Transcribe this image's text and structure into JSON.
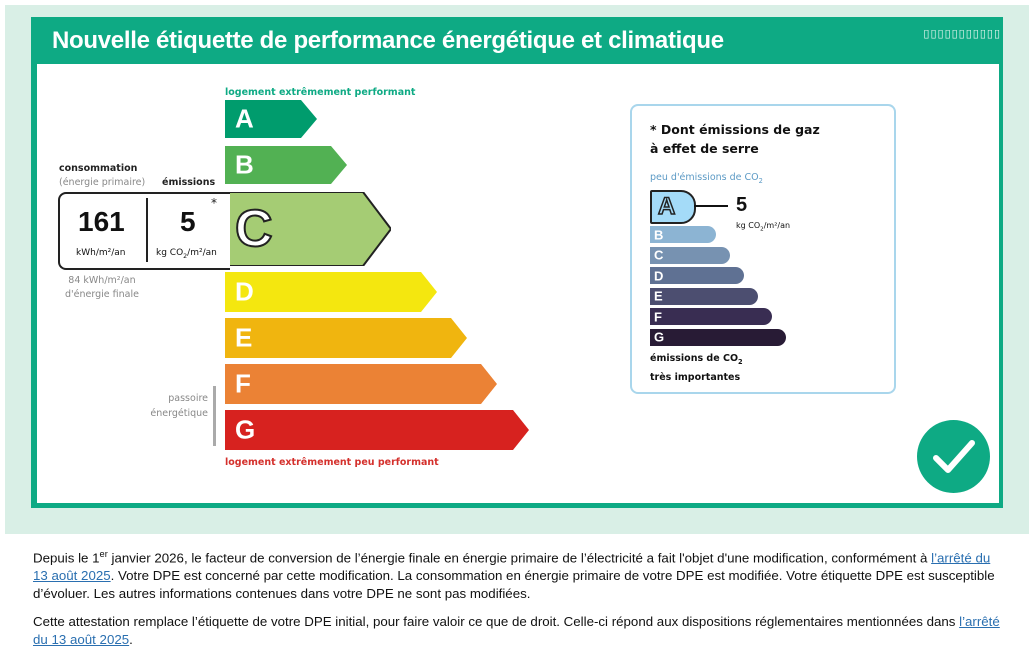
{
  "label": {
    "title": "Nouvelle étiquette de performance énergétique et climatique",
    "corner_text": "▯▯▯▯▯▯▯▯▯▯▯",
    "top_caption": "logement extrêmement performant",
    "bottom_caption": "logement extrêmement peu performant",
    "energy_classes": [
      {
        "letter": "A",
        "color": "#009c6d"
      },
      {
        "letter": "B",
        "color": "#52b153"
      },
      {
        "letter": "C",
        "color": "#a5cc74"
      },
      {
        "letter": "D",
        "color": "#f4e70f"
      },
      {
        "letter": "E",
        "color": "#f0b50f"
      },
      {
        "letter": "F",
        "color": "#eb8235"
      },
      {
        "letter": "G",
        "color": "#d7221f"
      }
    ],
    "current_class": "C",
    "consumption": {
      "label": "consommation",
      "sub_label": "(énergie primaire)",
      "value": "161",
      "unit": "kWh/m²/an"
    },
    "emissions": {
      "label": "émissions",
      "value": "5",
      "unit_pre": "kg CO",
      "unit_sub": "2",
      "unit_post": "/m²/an",
      "star": "*"
    },
    "final_energy": {
      "line1": "84 kWh/m²/an",
      "line2": "d'énergie finale"
    },
    "passoire": {
      "line1": "passoire",
      "line2": "énergétique"
    },
    "ges": {
      "title_line1": "* Dont émissions de gaz",
      "title_line2": "à effet de serre",
      "top_caption_pre": "peu d'émissions de CO",
      "top_caption_sub": "2",
      "classes": [
        {
          "letter": "A",
          "color": "#a4dbf8"
        },
        {
          "letter": "B",
          "color": "#8cb4d3"
        },
        {
          "letter": "C",
          "color": "#7792b1"
        },
        {
          "letter": "D",
          "color": "#5f7193"
        },
        {
          "letter": "E",
          "color": "#4c4e70"
        },
        {
          "letter": "F",
          "color": "#392d52"
        },
        {
          "letter": "G",
          "color": "#281b35"
        }
      ],
      "current_class": "A",
      "value": "5",
      "unit_pre": "kg CO",
      "unit_sub": "2",
      "unit_post": "/m²/an",
      "bottom_line1_pre": "émissions de CO",
      "bottom_line1_sub": "2",
      "bottom_line2": "très importantes"
    },
    "status": "check"
  },
  "notice": {
    "p1_start": "Depuis le 1",
    "p1_sup": "er",
    "p1_mid": " janvier 2026, le facteur de conversion de l’énergie finale en énergie primaire de l’électricité a fait l'objet d'une modification, conformément à ",
    "p1_link": "l’arrêté du 13 août 2025",
    "p1_end": ". Votre DPE est concerné par cette modification. La consommation en énergie primaire de votre DPE est modifiée. Votre étiquette DPE est susceptible d’évoluer. Les autres informations contenues dans votre DPE ne sont pas modifiées.",
    "p2_start": "Cette attestation remplace l’étiquette de votre DPE initial, pour faire valoir ce que de droit. Celle-ci répond aux dispositions réglementaires mentionnées dans ",
    "p2_link": "l’arrêté du 13 août 2025",
    "p2_end": "."
  }
}
